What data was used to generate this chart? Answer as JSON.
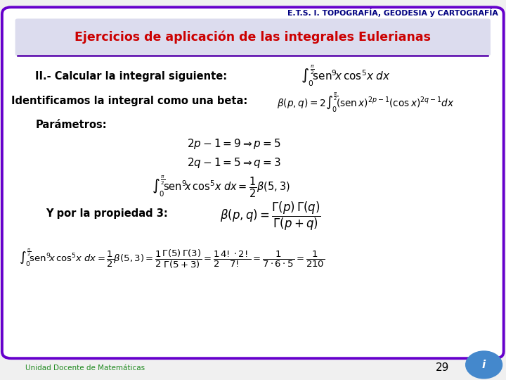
{
  "bg_color": "#f0f0f0",
  "header_text": "E.T.S. I. TOPOGRAFÍA, GEODESIA y CARTOGRAFÍA",
  "title_text": "Ejercicios de aplicación de las integrales Eulerianas",
  "title_color": "#cc0000",
  "border_color": "#6600cc",
  "footer_text": "Unidad Docente de Matemáticas",
  "footer_page": "29",
  "line1": "II.- Calcular la integral siguiente:",
  "line2_prefix": "Identificamos la integral como una beta:",
  "line3": "Parámetros:",
  "line_prop": "Y por la propiedad 3:"
}
